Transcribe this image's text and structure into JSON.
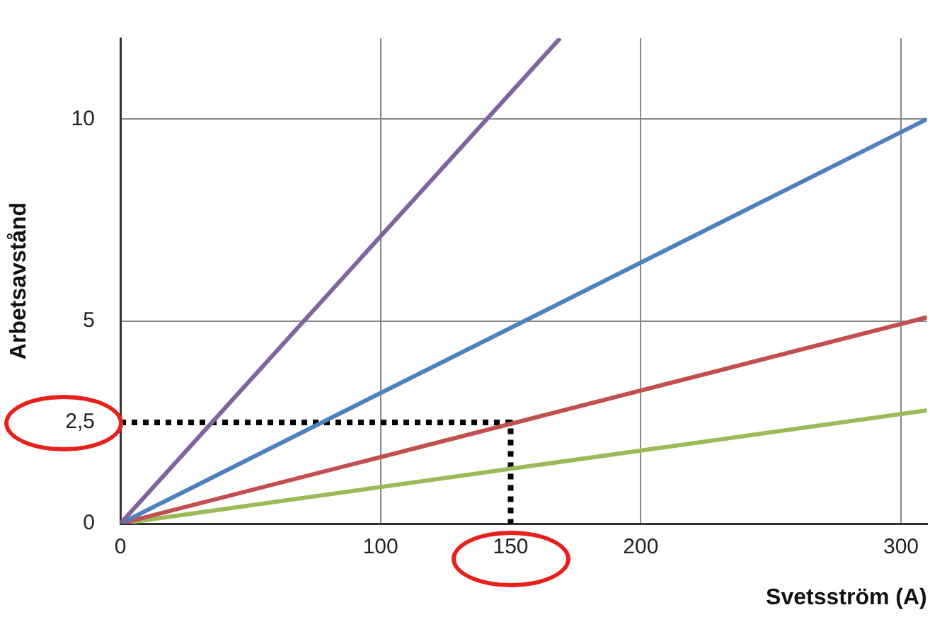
{
  "chart_data": {
    "type": "line",
    "xlabel": "Svetsström (A)",
    "ylabel": "Arbetsavstånd",
    "xlim": [
      0,
      310
    ],
    "ylim": [
      0,
      12
    ],
    "xticks": [
      0,
      100,
      {
        "value": 150,
        "label": "150"
      },
      200,
      300
    ],
    "yticks": [
      0,
      {
        "value": 2.5,
        "label": "2,5"
      },
      5,
      10
    ],
    "grid": true,
    "legend": false,
    "marker": "none",
    "line_style": "solid",
    "series": [
      {
        "color": "#8064a2",
        "x": [
          0,
          169
        ],
        "values": [
          0,
          12
        ]
      },
      {
        "color": "#4f81bd",
        "x": [
          0,
          310
        ],
        "values": [
          0,
          10
        ]
      },
      {
        "color": "#c0504d",
        "x": [
          0,
          310
        ],
        "values": [
          0,
          5.1
        ]
      },
      {
        "color": "#9bbb59",
        "x": [
          0,
          310
        ],
        "values": [
          0,
          2.8
        ]
      },
      {
        "color": "#000000",
        "line_style": "dotted",
        "x": [
          0,
          150,
          150
        ],
        "values": [
          2.5,
          2.5,
          0
        ]
      }
    ]
  }
}
